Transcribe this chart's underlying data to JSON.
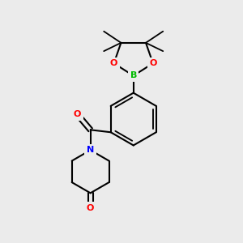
{
  "background_color": "#ebebeb",
  "atom_colors": {
    "C": "#000000",
    "O": "#ff0000",
    "N": "#0000ff",
    "B": "#00bb00"
  },
  "bond_color": "#000000",
  "figsize": [
    3.0,
    3.0
  ],
  "dpi": 100,
  "xlim": [
    0,
    10
  ],
  "ylim": [
    0,
    10
  ]
}
